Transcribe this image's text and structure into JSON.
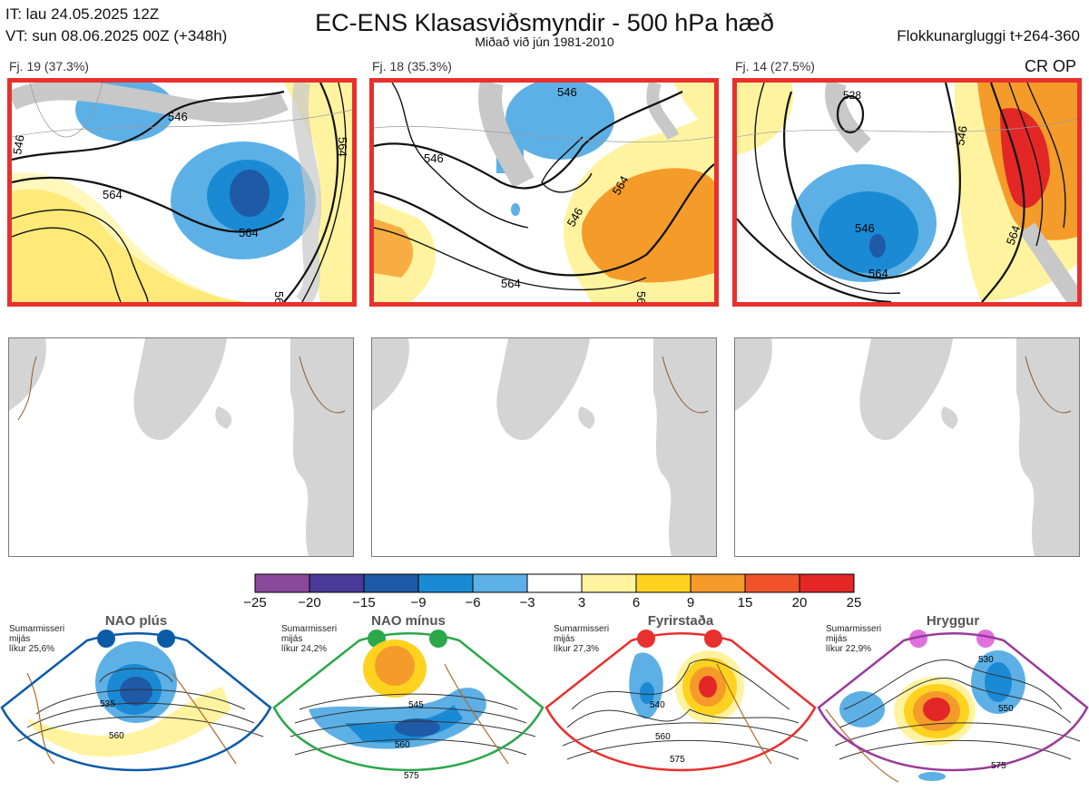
{
  "header": {
    "it_line": "IT: lau 24.05.2025 12Z",
    "vt_line": "VT: sun 08.06.2025 00Z  (+348h)",
    "title": "EC-ENS Klasasviðsmyndir - 500 hPa hæð",
    "subtitle": "Miðað við jún 1981-2010",
    "window": "Flokkunargluggi t+264-360"
  },
  "clusters": [
    {
      "label": "Fj. 19 (37.3%)",
      "contours": [
        "546",
        "564",
        "564",
        "546",
        "564",
        "564"
      ]
    },
    {
      "label": "Fj. 18 (35.3%)",
      "contours": [
        "546",
        "546",
        "564",
        "546",
        "564",
        "564"
      ]
    },
    {
      "label": "Fj. 14 (27.5%)",
      "contours": [
        "528",
        "546",
        "564",
        "546",
        "564"
      ],
      "tag": "CR OP"
    }
  ],
  "colorbar": {
    "ticks": [
      "−25",
      "−20",
      "−15",
      "−9",
      "−6",
      "−3",
      "3",
      "6",
      "9",
      "15",
      "20",
      "25"
    ],
    "colors": [
      "#8a4a9c",
      "#4a3a9a",
      "#1f5aa6",
      "#1a8ad4",
      "#5cb0e6",
      "#ffffff",
      "#fff3a0",
      "#ffd21f",
      "#f59b2a",
      "#f0532a",
      "#e32626",
      "#b81818"
    ]
  },
  "regimes": [
    {
      "name": "NAO plús",
      "line1": "Sumarmisseri",
      "line2": "mijás",
      "line3": "líkur 25,6%",
      "color": "#0a5aa8",
      "contours": [
        "535",
        "560"
      ]
    },
    {
      "name": "NAO mínus",
      "line1": "Sumarmisseri",
      "line2": "mijás",
      "line3": "líkur 24,2%",
      "color": "#2aa84a",
      "contours": [
        "545",
        "560",
        "575"
      ]
    },
    {
      "name": "Fyrirstaða",
      "line1": "Sumarmisseri",
      "line2": "mijás",
      "line3": "líkur 27,3%",
      "color": "#e8302e",
      "contours": [
        "540",
        "560",
        "575"
      ]
    },
    {
      "name": "Hryggur",
      "line1": "Sumarmisseri",
      "line2": "mijás",
      "line3": "líkur 22,9%",
      "color": "#e070e0",
      "contours": [
        "530",
        "550",
        "575"
      ]
    }
  ]
}
